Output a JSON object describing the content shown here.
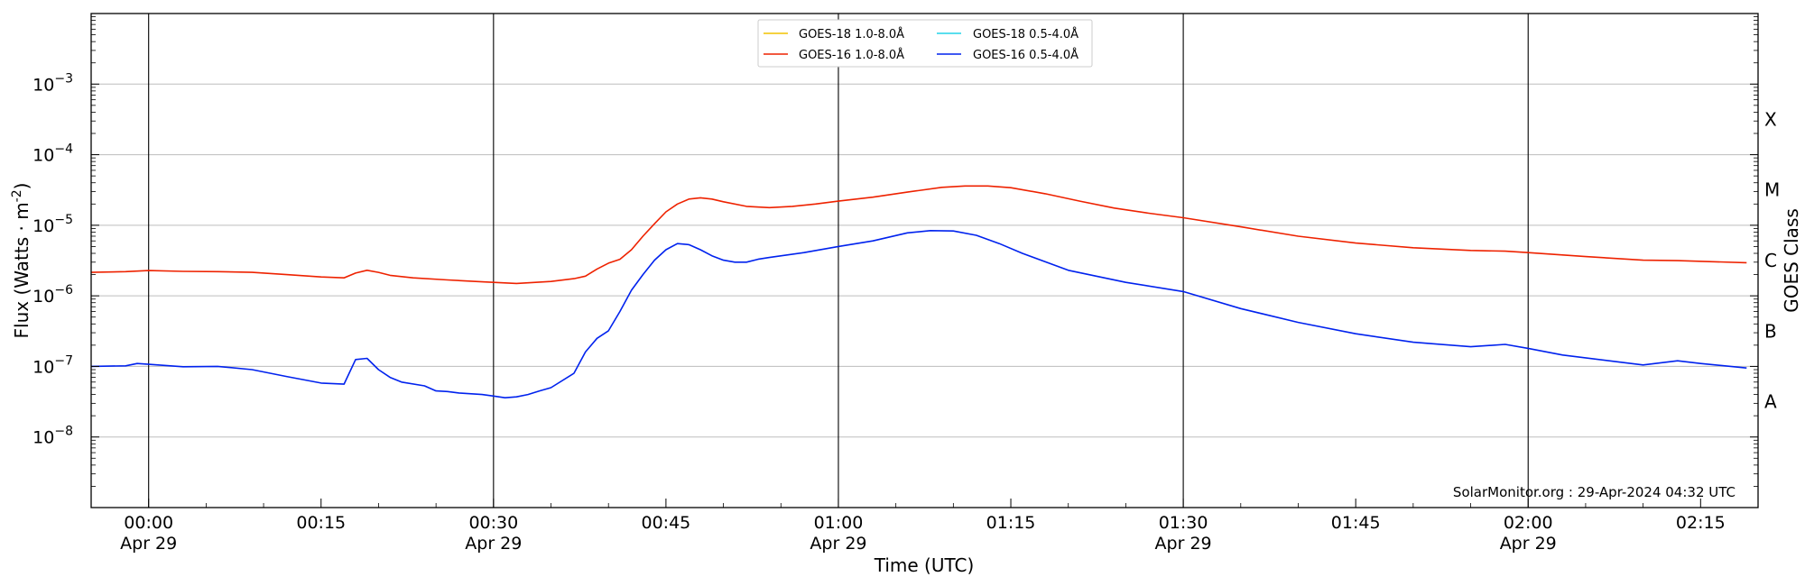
{
  "chart_data": {
    "type": "line",
    "xlabel": "Time (UTC)",
    "ylabel": "Flux (Watts · m",
    "ylabel_superscript": "-2",
    "ylabel_suffix": ")",
    "y2label": "GOES Class",
    "yscale": "log",
    "xlim": [
      "23:55",
      "02:20"
    ],
    "ylim": [
      1e-09,
      0.01
    ],
    "x_ticks": [
      {
        "time": "00:00",
        "date": "Apr 29"
      },
      {
        "time": "00:15",
        "date": ""
      },
      {
        "time": "00:30",
        "date": "Apr 29"
      },
      {
        "time": "00:45",
        "date": ""
      },
      {
        "time": "01:00",
        "date": "Apr 29"
      },
      {
        "time": "01:15",
        "date": ""
      },
      {
        "time": "01:30",
        "date": "Apr 29"
      },
      {
        "time": "01:45",
        "date": ""
      },
      {
        "time": "02:00",
        "date": "Apr 29"
      },
      {
        "time": "02:15",
        "date": ""
      }
    ],
    "y_ticks": [
      {
        "base": "10",
        "exp": "−8",
        "value": 1e-08
      },
      {
        "base": "10",
        "exp": "−7",
        "value": 1e-07
      },
      {
        "base": "10",
        "exp": "−6",
        "value": 1e-06
      },
      {
        "base": "10",
        "exp": "−5",
        "value": 1e-05
      },
      {
        "base": "10",
        "exp": "−4",
        "value": 0.0001
      },
      {
        "base": "10",
        "exp": "−3",
        "value": 0.001
      }
    ],
    "goes_classes": [
      {
        "label": "A",
        "value": 3.16e-08
      },
      {
        "label": "B",
        "value": 3.16e-07
      },
      {
        "label": "C",
        "value": 3.16e-06
      },
      {
        "label": "M",
        "value": 3.16e-05
      },
      {
        "label": "X",
        "value": 0.000316
      }
    ],
    "vlines": [
      "00:00",
      "00:30",
      "01:00",
      "01:30",
      "02:00"
    ],
    "grid": "horizontal",
    "legend_position": "top-center",
    "legend": [
      {
        "name": "GOES-18 1.0-8.0Å",
        "color": "#f2c200"
      },
      {
        "name": "GOES-18 0.5-4.0Å",
        "color": "#22d3e8"
      },
      {
        "name": "GOES-16 1.0-8.0Å",
        "color": "#ee2200"
      },
      {
        "name": "GOES-16 0.5-4.0Å",
        "color": "#0022ee"
      }
    ],
    "series": [
      {
        "name": "GOES-16 1.0-8.0Å",
        "color": "#ee2200",
        "x": [
          "23:55",
          "23:58",
          "00:00",
          "00:03",
          "00:06",
          "00:09",
          "00:12",
          "00:15",
          "00:17",
          "00:18",
          "00:19",
          "00:20",
          "00:21",
          "00:23",
          "00:26",
          "00:29",
          "00:32",
          "00:35",
          "00:37",
          "00:38",
          "00:39",
          "00:40",
          "00:41",
          "00:42",
          "00:43",
          "00:44",
          "00:45",
          "00:46",
          "00:47",
          "00:48",
          "00:49",
          "00:50",
          "00:52",
          "00:54",
          "00:56",
          "00:58",
          "01:00",
          "01:03",
          "01:06",
          "01:09",
          "01:11",
          "01:13",
          "01:15",
          "01:18",
          "01:21",
          "01:24",
          "01:27",
          "01:30",
          "01:35",
          "01:40",
          "01:45",
          "01:50",
          "01:55",
          "01:58",
          "02:00",
          "02:05",
          "02:10",
          "02:13",
          "02:19"
        ],
        "values": [
          2.15e-06,
          2.2e-06,
          2.28e-06,
          2.22e-06,
          2.2e-06,
          2.15e-06,
          2e-06,
          1.85e-06,
          1.8e-06,
          2.1e-06,
          2.3e-06,
          2.15e-06,
          1.95e-06,
          1.8e-06,
          1.68e-06,
          1.58e-06,
          1.5e-06,
          1.6e-06,
          1.75e-06,
          1.9e-06,
          2.4e-06,
          2.9e-06,
          3.3e-06,
          4.5e-06,
          7e-06,
          1.05e-05,
          1.55e-05,
          2e-05,
          2.35e-05,
          2.45e-05,
          2.35e-05,
          2.15e-05,
          1.85e-05,
          1.78e-05,
          1.85e-05,
          2e-05,
          2.2e-05,
          2.5e-05,
          2.95e-05,
          3.45e-05,
          3.6e-05,
          3.6e-05,
          3.4e-05,
          2.8e-05,
          2.2e-05,
          1.75e-05,
          1.48e-05,
          1.28e-05,
          9.5e-06,
          7e-06,
          5.6e-06,
          4.8e-06,
          4.4e-06,
          4.3e-06,
          4.1e-06,
          3.6e-06,
          3.2e-06,
          3.15e-06,
          2.95e-06
        ]
      },
      {
        "name": "GOES-16 0.5-4.0Å",
        "color": "#0022ee",
        "x": [
          "23:55",
          "23:58",
          "23:59",
          "00:00",
          "00:03",
          "00:06",
          "00:09",
          "00:12",
          "00:15",
          "00:17",
          "00:18",
          "00:19",
          "00:20",
          "00:21",
          "00:22",
          "00:24",
          "00:25",
          "00:26",
          "00:27",
          "00:29",
          "00:30",
          "00:31",
          "00:32",
          "00:33",
          "00:34",
          "00:35",
          "00:37",
          "00:38",
          "00:39",
          "00:40",
          "00:41",
          "00:42",
          "00:43",
          "00:44",
          "00:45",
          "00:46",
          "00:47",
          "00:48",
          "00:49",
          "00:50",
          "00:51",
          "00:52",
          "00:53",
          "00:54",
          "00:57",
          "01:00",
          "01:03",
          "01:06",
          "01:08",
          "01:10",
          "01:12",
          "01:14",
          "01:16",
          "01:20",
          "01:25",
          "01:30",
          "01:35",
          "01:40",
          "01:45",
          "01:50",
          "01:55",
          "01:58",
          "02:00",
          "02:03",
          "02:08",
          "02:10",
          "02:13",
          "02:15",
          "02:19"
        ],
        "values": [
          1e-07,
          1.02e-07,
          1.1e-07,
          1.07e-07,
          9.9e-08,
          1e-07,
          9e-08,
          7.2e-08,
          5.8e-08,
          5.6e-08,
          1.25e-07,
          1.3e-07,
          9e-08,
          7e-08,
          6e-08,
          5.3e-08,
          4.5e-08,
          4.4e-08,
          4.2e-08,
          4e-08,
          3.8e-08,
          3.6e-08,
          3.7e-08,
          4e-08,
          4.5e-08,
          5e-08,
          8e-08,
          1.6e-07,
          2.5e-07,
          3.2e-07,
          6e-07,
          1.2e-06,
          2e-06,
          3.2e-06,
          4.5e-06,
          5.5e-06,
          5.3e-06,
          4.5e-06,
          3.7e-06,
          3.2e-06,
          3e-06,
          3e-06,
          3.3e-06,
          3.5e-06,
          4.1e-06,
          5e-06,
          6e-06,
          7.8e-06,
          8.4e-06,
          8.3e-06,
          7.2e-06,
          5.5e-06,
          4e-06,
          2.3e-06,
          1.55e-06,
          1.15e-06,
          6.6e-07,
          4.2e-07,
          2.9e-07,
          2.2e-07,
          1.9e-07,
          2.05e-07,
          1.8e-07,
          1.45e-07,
          1.15e-07,
          1.05e-07,
          1.2e-07,
          1.1e-07,
          9.5e-08
        ]
      }
    ],
    "watermark": "SolarMonitor.org : 29-Apr-2024 04:32 UTC"
  }
}
